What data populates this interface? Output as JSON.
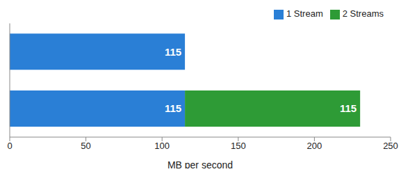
{
  "chart_data": {
    "type": "bar",
    "orientation": "horizontal",
    "stacked": true,
    "categories": [
      null,
      null
    ],
    "series": [
      {
        "name": "1 Stream",
        "color": "#2a7fd6",
        "values": [
          115,
          115
        ]
      },
      {
        "name": "2 Streams",
        "color": "#2e9b36",
        "values": [
          null,
          115
        ]
      }
    ],
    "xlabel": "MB per second",
    "xlim": [
      0,
      250
    ],
    "xticks": [
      0,
      50,
      100,
      150,
      200,
      250
    ],
    "grid": false,
    "legend": "top-right",
    "data_labels": true,
    "tick_labels": "x"
  }
}
